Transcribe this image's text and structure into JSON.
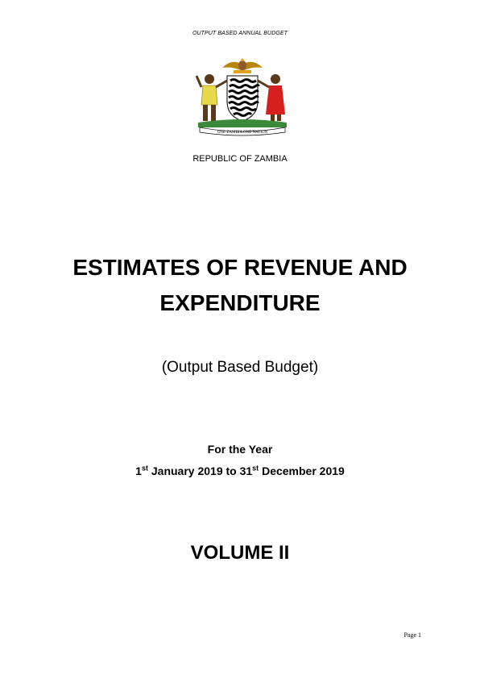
{
  "header": {
    "text": "OUTPUT BASED ANNUAL BUDGET"
  },
  "emblem": {
    "motto": "ONE ZAMBIA ONE NATION"
  },
  "country": "REPUBLIC OF ZAMBIA",
  "title": {
    "line1": "ESTIMATES OF REVENUE AND",
    "line2": "EXPENDITURE"
  },
  "subtitle": "(Output Based Budget)",
  "period": {
    "label": "For the Year",
    "start_day": "1",
    "start_suffix": "st",
    "start_rest": " January 2019 to 31",
    "end_suffix": "st",
    "end_rest": " December 2019"
  },
  "volume": "VOLUME II",
  "footer": {
    "page": "Page 1"
  },
  "colors": {
    "text": "#000000",
    "background": "#ffffff"
  }
}
